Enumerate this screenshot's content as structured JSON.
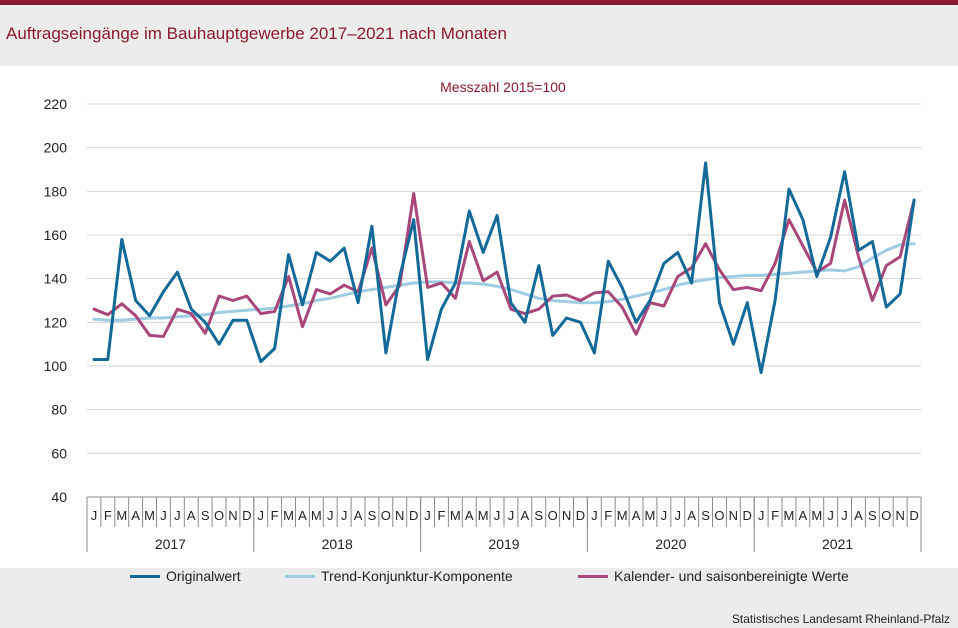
{
  "title": "Auftragseingänge im Bauhauptgewerbe 2017–2021 nach Monaten",
  "source": "Statistisches Landesamt Rheinland-Pfalz",
  "colors": {
    "accent": "#8c1a2e",
    "original": "#136a99",
    "trend": "#9ecde3",
    "adjusted": "#a84779"
  },
  "chart_data": {
    "type": "line",
    "subtitle": "Messzahl 2015=100",
    "ylim": [
      40,
      220
    ],
    "yticks": [
      40,
      60,
      80,
      100,
      120,
      140,
      160,
      180,
      200,
      220
    ],
    "grid": true,
    "legend_position": "bottom",
    "month_labels": [
      "J",
      "F",
      "M",
      "A",
      "M",
      "J",
      "J",
      "A",
      "S",
      "O",
      "N",
      "D"
    ],
    "years": [
      "2017",
      "2018",
      "2019",
      "2020",
      "2021"
    ],
    "series": [
      {
        "name": "Originalwert",
        "color": "#136a99",
        "values": [
          103,
          103,
          158,
          130,
          123,
          134,
          143,
          126,
          120,
          110,
          121,
          121,
          102,
          108,
          151,
          128,
          152,
          148,
          154,
          129,
          164,
          106,
          141,
          167,
          103,
          126,
          138,
          171,
          152,
          169,
          129,
          120,
          146,
          114,
          122,
          120,
          106,
          148,
          136,
          120,
          130,
          147,
          152,
          138,
          193,
          129,
          110,
          129,
          97,
          130,
          181,
          167,
          141,
          159,
          189,
          153,
          157,
          127,
          133,
          176
        ]
      },
      {
        "name": "Trend-Konjunktur-Komponente",
        "color": "#9ecde3",
        "values": [
          121.5,
          121,
          121,
          121.5,
          122,
          122,
          122.5,
          123,
          123.5,
          124.5,
          125,
          125.5,
          126,
          126.5,
          127.5,
          128.5,
          130,
          131,
          132.5,
          134,
          135,
          136,
          137,
          138,
          138.5,
          138.5,
          138,
          138,
          137.5,
          136.5,
          135,
          133,
          131,
          130,
          129.5,
          129,
          129,
          129.5,
          130.5,
          132,
          133.5,
          135,
          137,
          138.5,
          139.5,
          140.5,
          141,
          141.5,
          141.5,
          142,
          142.5,
          143,
          143.5,
          144,
          143.5,
          145.5,
          149.5,
          153,
          155.5,
          156
        ]
      },
      {
        "name": "Kalender- und saisonbereinigte Werte",
        "color": "#a84779",
        "values": [
          126,
          123.5,
          128.5,
          123,
          114,
          113.5,
          126,
          124,
          115,
          132,
          130,
          132,
          124,
          125,
          141,
          118,
          135,
          133,
          137,
          134,
          154,
          128,
          137,
          179,
          136,
          138,
          131,
          157,
          139,
          143,
          126,
          124,
          126,
          132,
          132.5,
          130,
          133.5,
          134,
          127,
          114.5,
          129,
          127.5,
          141,
          145,
          156,
          144,
          135,
          136,
          134.5,
          147,
          167,
          155,
          143,
          147,
          176,
          150,
          130,
          146,
          150,
          176
        ]
      }
    ]
  }
}
